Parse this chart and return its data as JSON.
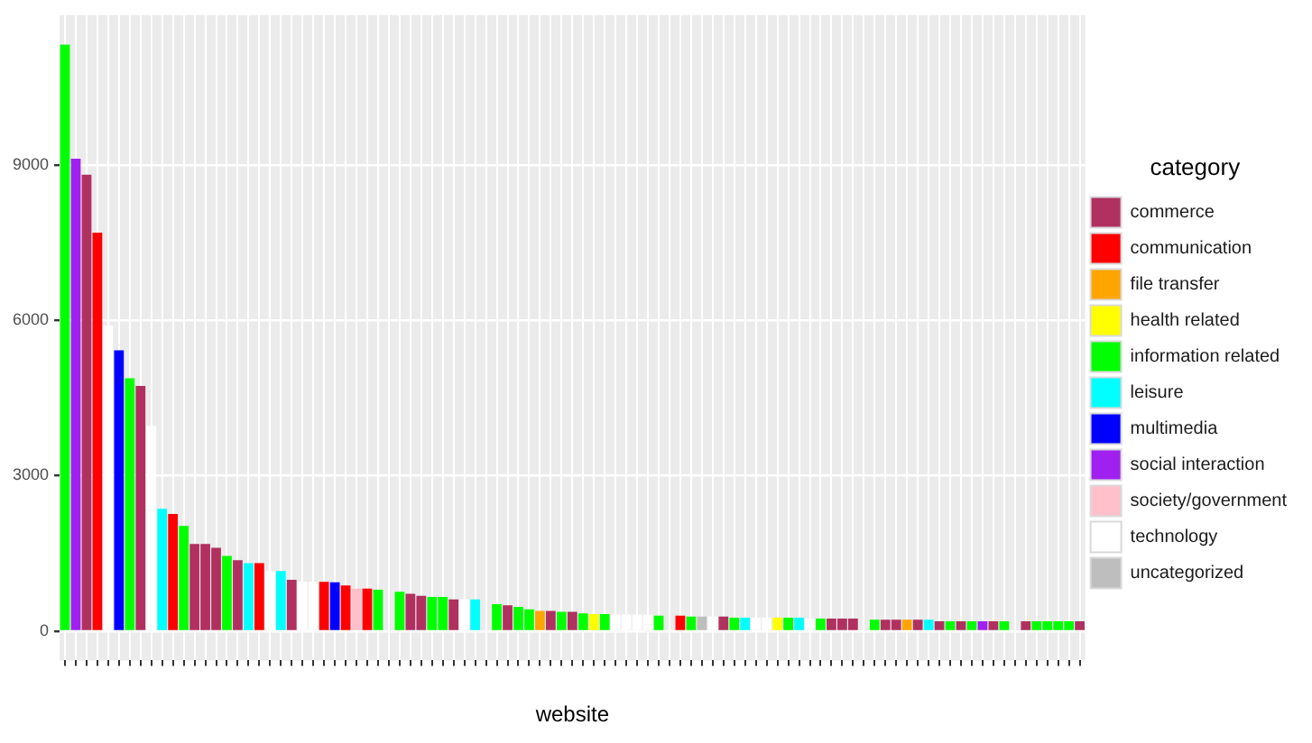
{
  "chart_data": {
    "type": "bar",
    "xlabel": "website",
    "legend_title": "category",
    "legend": "right",
    "grid": true,
    "categories": [
      null,
      null,
      null,
      null,
      null,
      null,
      null,
      null,
      null,
      null,
      null,
      null,
      null,
      null,
      null,
      null,
      null,
      null,
      null,
      null,
      null,
      null,
      null,
      null,
      null,
      null,
      null,
      null,
      null,
      null,
      null,
      null,
      null,
      null,
      null,
      null,
      null,
      null,
      null,
      null,
      null,
      null,
      null,
      null,
      null,
      null,
      null,
      null,
      null,
      null,
      null,
      null,
      null,
      null,
      null,
      null,
      null,
      null,
      null,
      null,
      null,
      null,
      null,
      null,
      null,
      null,
      null,
      null,
      null,
      null,
      null,
      null,
      null,
      null,
      null,
      null,
      null,
      null,
      null,
      null,
      null,
      null,
      null,
      null,
      null,
      null,
      null,
      null,
      null,
      null,
      null,
      null,
      null,
      null,
      null
    ],
    "ylim": [
      -566,
      11889
    ],
    "yticks": [
      0,
      3000,
      6000,
      9000
    ],
    "series": [
      {
        "name": "commerce",
        "color": "#b03060",
        "values": [
          null,
          null,
          8810,
          null,
          null,
          null,
          null,
          4730,
          null,
          null,
          null,
          null,
          1680,
          1680,
          1610,
          null,
          1370,
          null,
          null,
          null,
          null,
          990,
          null,
          null,
          null,
          null,
          null,
          null,
          null,
          null,
          null,
          null,
          720,
          680,
          null,
          null,
          610,
          null,
          null,
          null,
          null,
          500,
          null,
          null,
          null,
          390,
          null,
          370,
          null,
          null,
          null,
          null,
          null,
          null,
          null,
          null,
          null,
          null,
          null,
          null,
          null,
          280,
          null,
          null,
          null,
          null,
          null,
          null,
          null,
          null,
          null,
          240,
          240,
          240,
          null,
          null,
          220,
          220,
          null,
          220,
          null,
          190,
          null,
          190,
          null,
          null,
          190,
          null,
          null,
          190,
          null,
          null,
          null,
          null,
          190
        ]
      },
      {
        "name": "communication",
        "color": "#ff0000",
        "values": [
          null,
          null,
          null,
          7690,
          null,
          null,
          null,
          null,
          null,
          null,
          2260,
          null,
          null,
          null,
          null,
          null,
          null,
          null,
          1310,
          null,
          null,
          null,
          null,
          null,
          950,
          null,
          880,
          null,
          820,
          null,
          null,
          null,
          null,
          null,
          null,
          null,
          null,
          null,
          null,
          null,
          null,
          null,
          null,
          null,
          null,
          null,
          null,
          null,
          null,
          null,
          null,
          null,
          null,
          null,
          null,
          null,
          null,
          300,
          null,
          null,
          null,
          null,
          null,
          null,
          null,
          null,
          null,
          null,
          null,
          null,
          null,
          null,
          null,
          null,
          null,
          null,
          null,
          null,
          null,
          null,
          null,
          null,
          null,
          null,
          null,
          null,
          null,
          null,
          null,
          null,
          null,
          null,
          null,
          null,
          null
        ]
      },
      {
        "name": "file transfer",
        "color": "#ffa500",
        "values": [
          null,
          null,
          null,
          null,
          null,
          null,
          null,
          null,
          null,
          null,
          null,
          null,
          null,
          null,
          null,
          null,
          null,
          null,
          null,
          null,
          null,
          null,
          null,
          null,
          null,
          null,
          null,
          null,
          null,
          null,
          null,
          null,
          null,
          null,
          null,
          null,
          null,
          null,
          null,
          null,
          null,
          null,
          null,
          null,
          390,
          null,
          null,
          null,
          null,
          null,
          null,
          null,
          null,
          null,
          null,
          null,
          null,
          null,
          null,
          null,
          null,
          null,
          null,
          null,
          null,
          null,
          null,
          null,
          null,
          null,
          null,
          null,
          null,
          null,
          null,
          null,
          null,
          null,
          220,
          null,
          null,
          null,
          null,
          null,
          null,
          null,
          null,
          null,
          null,
          null,
          null,
          null,
          null,
          null,
          null
        ]
      },
      {
        "name": "health related",
        "color": "#ffff00",
        "values": [
          null,
          null,
          null,
          null,
          null,
          null,
          null,
          null,
          null,
          null,
          null,
          null,
          null,
          null,
          null,
          null,
          null,
          null,
          null,
          null,
          null,
          null,
          null,
          null,
          null,
          null,
          null,
          null,
          null,
          null,
          null,
          null,
          null,
          null,
          null,
          null,
          null,
          null,
          null,
          null,
          null,
          null,
          null,
          null,
          null,
          null,
          null,
          null,
          null,
          330,
          null,
          null,
          null,
          null,
          null,
          null,
          null,
          null,
          null,
          null,
          null,
          null,
          null,
          null,
          null,
          null,
          260,
          null,
          null,
          null,
          null,
          null,
          null,
          null,
          null,
          null,
          null,
          null,
          null,
          null,
          null,
          null,
          null,
          null,
          null,
          null,
          null,
          null,
          null,
          null,
          null,
          null,
          null,
          null,
          null
        ]
      },
      {
        "name": "information related",
        "color": "#00ff00",
        "values": [
          11320,
          null,
          null,
          null,
          null,
          null,
          4880,
          null,
          null,
          null,
          null,
          2030,
          null,
          null,
          null,
          1450,
          null,
          null,
          null,
          null,
          null,
          null,
          null,
          null,
          null,
          null,
          null,
          null,
          null,
          800,
          null,
          760,
          null,
          null,
          660,
          660,
          null,
          null,
          null,
          null,
          520,
          null,
          470,
          420,
          null,
          null,
          370,
          null,
          340,
          null,
          330,
          null,
          null,
          null,
          null,
          300,
          null,
          null,
          280,
          null,
          null,
          null,
          260,
          null,
          null,
          null,
          null,
          260,
          null,
          null,
          240,
          null,
          null,
          null,
          null,
          220,
          null,
          null,
          null,
          null,
          null,
          null,
          190,
          null,
          190,
          null,
          null,
          190,
          null,
          null,
          190,
          190,
          190,
          190,
          null
        ]
      },
      {
        "name": "leisure",
        "color": "#00ffff",
        "values": [
          null,
          null,
          null,
          null,
          null,
          null,
          null,
          null,
          null,
          2360,
          null,
          null,
          null,
          null,
          null,
          null,
          null,
          1310,
          null,
          null,
          1160,
          null,
          null,
          null,
          null,
          null,
          null,
          null,
          null,
          null,
          null,
          null,
          null,
          null,
          null,
          null,
          null,
          null,
          610,
          null,
          null,
          null,
          null,
          null,
          null,
          null,
          null,
          null,
          null,
          null,
          null,
          null,
          null,
          null,
          null,
          null,
          null,
          null,
          null,
          null,
          null,
          null,
          null,
          260,
          null,
          null,
          null,
          null,
          260,
          null,
          null,
          null,
          null,
          null,
          null,
          null,
          null,
          null,
          null,
          null,
          220,
          null,
          null,
          null,
          null,
          null,
          null,
          null,
          null,
          null,
          null,
          null,
          null,
          null,
          null
        ]
      },
      {
        "name": "multimedia",
        "color": "#0000ff",
        "values": [
          null,
          null,
          null,
          null,
          null,
          5420,
          null,
          null,
          null,
          null,
          null,
          null,
          null,
          null,
          null,
          null,
          null,
          null,
          null,
          null,
          null,
          null,
          null,
          null,
          null,
          940,
          null,
          null,
          null,
          null,
          null,
          null,
          null,
          null,
          null,
          null,
          null,
          null,
          null,
          null,
          null,
          null,
          null,
          null,
          null,
          null,
          null,
          null,
          null,
          null,
          null,
          null,
          null,
          null,
          null,
          null,
          null,
          null,
          null,
          null,
          null,
          null,
          null,
          null,
          null,
          null,
          null,
          null,
          null,
          null,
          null,
          null,
          null,
          null,
          null,
          null,
          null,
          null,
          null,
          null,
          null,
          null,
          null,
          null,
          null,
          null,
          null,
          null,
          null,
          null,
          null,
          null,
          null,
          null,
          null
        ]
      },
      {
        "name": "social interaction",
        "color": "#a020f0",
        "values": [
          null,
          9120,
          null,
          null,
          null,
          null,
          null,
          null,
          null,
          null,
          null,
          null,
          null,
          null,
          null,
          null,
          null,
          null,
          null,
          null,
          null,
          null,
          null,
          null,
          null,
          null,
          null,
          null,
          null,
          null,
          null,
          null,
          null,
          null,
          null,
          null,
          null,
          null,
          null,
          null,
          null,
          null,
          null,
          null,
          null,
          null,
          null,
          null,
          null,
          null,
          null,
          null,
          null,
          null,
          null,
          null,
          null,
          null,
          null,
          null,
          null,
          null,
          null,
          null,
          null,
          null,
          null,
          null,
          null,
          null,
          null,
          null,
          null,
          null,
          null,
          null,
          null,
          null,
          null,
          null,
          null,
          null,
          null,
          null,
          null,
          190,
          null,
          null,
          null,
          null,
          null,
          null,
          null,
          null,
          null
        ]
      },
      {
        "name": "society/government",
        "color": "#ffc0cb",
        "values": [
          null,
          null,
          null,
          null,
          null,
          null,
          null,
          null,
          null,
          null,
          null,
          null,
          null,
          null,
          null,
          null,
          null,
          null,
          null,
          null,
          null,
          null,
          null,
          null,
          null,
          null,
          null,
          820,
          null,
          null,
          null,
          null,
          null,
          null,
          null,
          null,
          null,
          null,
          null,
          null,
          null,
          null,
          null,
          null,
          null,
          null,
          null,
          null,
          null,
          null,
          null,
          null,
          null,
          null,
          null,
          null,
          null,
          null,
          null,
          null,
          null,
          null,
          null,
          null,
          null,
          null,
          null,
          null,
          null,
          null,
          null,
          null,
          null,
          null,
          null,
          null,
          null,
          null,
          null,
          null,
          null,
          null,
          null,
          null,
          null,
          null,
          null,
          null,
          null,
          null,
          null,
          null,
          null,
          null,
          null
        ]
      },
      {
        "name": "technology",
        "color": "#ffffff",
        "values": [
          null,
          null,
          null,
          null,
          5900,
          null,
          null,
          null,
          3960,
          null,
          null,
          null,
          null,
          null,
          null,
          null,
          null,
          null,
          null,
          1160,
          null,
          null,
          950,
          950,
          null,
          null,
          null,
          null,
          null,
          null,
          null,
          null,
          null,
          null,
          null,
          null,
          null,
          610,
          null,
          null,
          null,
          null,
          null,
          null,
          null,
          null,
          null,
          null,
          null,
          null,
          null,
          320,
          320,
          320,
          320,
          null,
          null,
          null,
          null,
          null,
          280,
          null,
          null,
          null,
          260,
          260,
          null,
          null,
          null,
          240,
          null,
          null,
          null,
          null,
          null,
          null,
          null,
          null,
          null,
          null,
          null,
          null,
          null,
          null,
          null,
          null,
          null,
          null,
          null,
          null,
          null,
          null,
          null,
          null,
          null
        ]
      },
      {
        "name": "uncategorized",
        "color": "#bebebe",
        "values": [
          null,
          null,
          null,
          null,
          null,
          null,
          null,
          null,
          null,
          null,
          null,
          null,
          null,
          null,
          null,
          null,
          null,
          null,
          null,
          null,
          null,
          null,
          null,
          null,
          null,
          null,
          null,
          null,
          null,
          null,
          null,
          null,
          null,
          null,
          null,
          null,
          null,
          null,
          null,
          null,
          null,
          null,
          null,
          null,
          null,
          null,
          null,
          null,
          null,
          null,
          null,
          null,
          null,
          null,
          null,
          null,
          null,
          null,
          null,
          280,
          null,
          null,
          null,
          null,
          null,
          null,
          null,
          null,
          null,
          null,
          null,
          null,
          null,
          null,
          null,
          null,
          null,
          null,
          null,
          null,
          null,
          null,
          null,
          null,
          null,
          null,
          null,
          null,
          null,
          null,
          null,
          null,
          null,
          null,
          null
        ]
      }
    ]
  }
}
